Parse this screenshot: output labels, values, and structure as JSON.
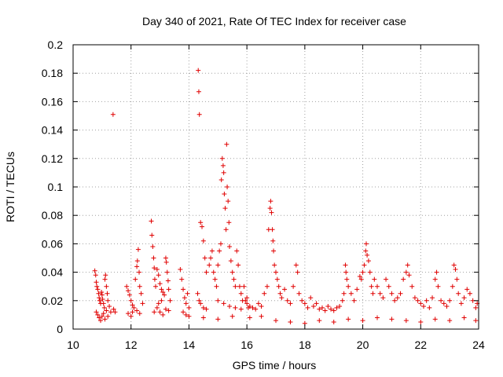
{
  "chart_data": {
    "type": "scatter",
    "title": "Day 340 of 2021, Rate Of TEC Index for receiver case",
    "xlabel": "GPS time / hours",
    "ylabel": "ROTI / TECUs",
    "xlim": [
      10,
      24
    ],
    "ylim": [
      0,
      0.2
    ],
    "xticks": [
      10,
      12,
      14,
      16,
      18,
      20,
      22,
      24
    ],
    "yticks": [
      0,
      0.02,
      0.04,
      0.06,
      0.08,
      0.1,
      0.12,
      0.14,
      0.16,
      0.18,
      0.2
    ],
    "xtick_labels": [
      "10",
      "12",
      "14",
      "16",
      "18",
      "20",
      "22",
      "24"
    ],
    "ytick_labels": [
      "0",
      "0.02",
      "0.04",
      "0.06",
      "0.08",
      "0.1",
      "0.12",
      "0.14",
      "0.16",
      "0.18",
      "0.2"
    ],
    "grid": true,
    "marker": "+",
    "marker_color": "#e00000",
    "series": [
      {
        "name": "ROTI",
        "color": "#e00000",
        "points": [
          [
            10.75,
            0.041
          ],
          [
            10.78,
            0.038
          ],
          [
            10.8,
            0.033
          ],
          [
            10.82,
            0.03
          ],
          [
            10.85,
            0.028
          ],
          [
            10.88,
            0.025
          ],
          [
            10.9,
            0.022
          ],
          [
            10.92,
            0.02
          ],
          [
            10.95,
            0.018
          ],
          [
            10.98,
            0.026
          ],
          [
            11.0,
            0.024
          ],
          [
            11.02,
            0.021
          ],
          [
            11.05,
            0.018
          ],
          [
            11.08,
            0.015
          ],
          [
            11.1,
            0.035
          ],
          [
            11.12,
            0.038
          ],
          [
            11.15,
            0.03
          ],
          [
            11.18,
            0.025
          ],
          [
            11.2,
            0.02
          ],
          [
            11.25,
            0.016
          ],
          [
            10.8,
            0.012
          ],
          [
            10.85,
            0.01
          ],
          [
            10.9,
            0.008
          ],
          [
            10.95,
            0.006
          ],
          [
            11.0,
            0.009
          ],
          [
            11.05,
            0.011
          ],
          [
            11.1,
            0.007
          ],
          [
            11.15,
            0.013
          ],
          [
            11.2,
            0.009
          ],
          [
            11.3,
            0.012
          ],
          [
            11.38,
            0.151
          ],
          [
            11.4,
            0.014
          ],
          [
            11.45,
            0.012
          ],
          [
            11.85,
            0.03
          ],
          [
            11.9,
            0.027
          ],
          [
            11.95,
            0.024
          ],
          [
            12.0,
            0.02
          ],
          [
            12.05,
            0.017
          ],
          [
            12.1,
            0.015
          ],
          [
            11.9,
            0.011
          ],
          [
            12.0,
            0.009
          ],
          [
            12.05,
            0.012
          ],
          [
            12.15,
            0.035
          ],
          [
            12.2,
            0.044
          ],
          [
            12.22,
            0.048
          ],
          [
            12.25,
            0.056
          ],
          [
            12.28,
            0.04
          ],
          [
            12.3,
            0.03
          ],
          [
            12.35,
            0.025
          ],
          [
            12.4,
            0.018
          ],
          [
            12.2,
            0.013
          ],
          [
            12.3,
            0.011
          ],
          [
            12.7,
            0.076
          ],
          [
            12.72,
            0.066
          ],
          [
            12.75,
            0.058
          ],
          [
            12.78,
            0.05
          ],
          [
            12.8,
            0.043
          ],
          [
            12.82,
            0.035
          ],
          [
            12.85,
            0.03
          ],
          [
            12.9,
            0.042
          ],
          [
            12.95,
            0.038
          ],
          [
            13.0,
            0.032
          ],
          [
            13.05,
            0.028
          ],
          [
            13.1,
            0.026
          ],
          [
            13.15,
            0.024
          ],
          [
            13.2,
            0.05
          ],
          [
            13.22,
            0.047
          ],
          [
            13.25,
            0.04
          ],
          [
            13.28,
            0.034
          ],
          [
            13.3,
            0.028
          ],
          [
            13.35,
            0.02
          ],
          [
            12.9,
            0.015
          ],
          [
            13.0,
            0.012
          ],
          [
            13.1,
            0.01
          ],
          [
            13.2,
            0.014
          ],
          [
            13.3,
            0.013
          ],
          [
            12.8,
            0.012
          ],
          [
            12.95,
            0.018
          ],
          [
            13.05,
            0.02
          ],
          [
            13.7,
            0.042
          ],
          [
            13.75,
            0.035
          ],
          [
            13.8,
            0.028
          ],
          [
            13.85,
            0.022
          ],
          [
            13.9,
            0.018
          ],
          [
            13.95,
            0.025
          ],
          [
            14.0,
            0.015
          ],
          [
            13.8,
            0.012
          ],
          [
            13.9,
            0.01
          ],
          [
            14.0,
            0.009
          ],
          [
            14.32,
            0.182
          ],
          [
            14.34,
            0.167
          ],
          [
            14.36,
            0.151
          ],
          [
            14.4,
            0.075
          ],
          [
            14.45,
            0.072
          ],
          [
            14.5,
            0.062
          ],
          [
            14.55,
            0.05
          ],
          [
            14.6,
            0.04
          ],
          [
            14.3,
            0.025
          ],
          [
            14.35,
            0.02
          ],
          [
            14.4,
            0.018
          ],
          [
            14.5,
            0.015
          ],
          [
            14.6,
            0.014
          ],
          [
            14.7,
            0.045
          ],
          [
            14.75,
            0.05
          ],
          [
            14.8,
            0.055
          ],
          [
            14.85,
            0.04
          ],
          [
            14.9,
            0.035
          ],
          [
            14.95,
            0.03
          ],
          [
            15.0,
            0.045
          ],
          [
            15.05,
            0.055
          ],
          [
            15.1,
            0.06
          ],
          [
            15.12,
            0.105
          ],
          [
            15.15,
            0.12
          ],
          [
            15.18,
            0.115
          ],
          [
            15.2,
            0.11
          ],
          [
            15.22,
            0.095
          ],
          [
            15.25,
            0.085
          ],
          [
            15.28,
            0.07
          ],
          [
            15.3,
            0.13
          ],
          [
            15.32,
            0.1
          ],
          [
            15.35,
            0.09
          ],
          [
            15.38,
            0.075
          ],
          [
            15.4,
            0.058
          ],
          [
            15.45,
            0.048
          ],
          [
            15.5,
            0.04
          ],
          [
            15.55,
            0.035
          ],
          [
            15.6,
            0.03
          ],
          [
            15.65,
            0.055
          ],
          [
            15.7,
            0.045
          ],
          [
            15.75,
            0.03
          ],
          [
            15.8,
            0.025
          ],
          [
            15.85,
            0.02
          ],
          [
            15.9,
            0.03
          ],
          [
            15.95,
            0.02
          ],
          [
            16.0,
            0.018
          ],
          [
            16.05,
            0.015
          ],
          [
            15.0,
            0.02
          ],
          [
            15.2,
            0.018
          ],
          [
            15.4,
            0.016
          ],
          [
            15.6,
            0.015
          ],
          [
            15.8,
            0.014
          ],
          [
            16.0,
            0.022
          ],
          [
            16.1,
            0.016
          ],
          [
            16.2,
            0.015
          ],
          [
            16.3,
            0.014
          ],
          [
            16.4,
            0.018
          ],
          [
            16.5,
            0.016
          ],
          [
            16.6,
            0.025
          ],
          [
            16.7,
            0.03
          ],
          [
            16.75,
            0.07
          ],
          [
            16.8,
            0.085
          ],
          [
            16.82,
            0.09
          ],
          [
            16.85,
            0.082
          ],
          [
            16.88,
            0.07
          ],
          [
            16.9,
            0.062
          ],
          [
            16.92,
            0.055
          ],
          [
            16.95,
            0.045
          ],
          [
            17.0,
            0.04
          ],
          [
            17.05,
            0.035
          ],
          [
            17.1,
            0.03
          ],
          [
            17.15,
            0.025
          ],
          [
            17.2,
            0.022
          ],
          [
            17.3,
            0.028
          ],
          [
            17.4,
            0.02
          ],
          [
            17.5,
            0.018
          ],
          [
            17.6,
            0.03
          ],
          [
            17.7,
            0.045
          ],
          [
            17.75,
            0.04
          ],
          [
            17.8,
            0.025
          ],
          [
            17.9,
            0.02
          ],
          [
            18.0,
            0.018
          ],
          [
            18.1,
            0.015
          ],
          [
            18.2,
            0.022
          ],
          [
            18.3,
            0.016
          ],
          [
            18.4,
            0.018
          ],
          [
            18.5,
            0.014
          ],
          [
            18.6,
            0.015
          ],
          [
            18.7,
            0.013
          ],
          [
            18.8,
            0.016
          ],
          [
            18.9,
            0.014
          ],
          [
            19.0,
            0.013
          ],
          [
            19.1,
            0.015
          ],
          [
            19.2,
            0.016
          ],
          [
            19.3,
            0.02
          ],
          [
            19.35,
            0.025
          ],
          [
            19.4,
            0.045
          ],
          [
            19.42,
            0.04
          ],
          [
            19.45,
            0.035
          ],
          [
            19.5,
            0.03
          ],
          [
            19.6,
            0.025
          ],
          [
            19.7,
            0.02
          ],
          [
            19.8,
            0.028
          ],
          [
            19.9,
            0.037
          ],
          [
            19.95,
            0.035
          ],
          [
            20.0,
            0.04
          ],
          [
            20.05,
            0.045
          ],
          [
            20.1,
            0.055
          ],
          [
            20.12,
            0.06
          ],
          [
            20.15,
            0.052
          ],
          [
            20.2,
            0.048
          ],
          [
            20.25,
            0.04
          ],
          [
            20.3,
            0.03
          ],
          [
            20.35,
            0.025
          ],
          [
            20.4,
            0.035
          ],
          [
            20.5,
            0.03
          ],
          [
            20.6,
            0.025
          ],
          [
            20.7,
            0.022
          ],
          [
            20.8,
            0.035
          ],
          [
            20.9,
            0.03
          ],
          [
            21.0,
            0.025
          ],
          [
            21.1,
            0.02
          ],
          [
            21.2,
            0.022
          ],
          [
            21.3,
            0.025
          ],
          [
            21.4,
            0.035
          ],
          [
            21.5,
            0.04
          ],
          [
            21.55,
            0.045
          ],
          [
            21.6,
            0.038
          ],
          [
            21.7,
            0.03
          ],
          [
            21.8,
            0.022
          ],
          [
            21.9,
            0.02
          ],
          [
            22.0,
            0.018
          ],
          [
            22.1,
            0.016
          ],
          [
            22.2,
            0.02
          ],
          [
            22.3,
            0.015
          ],
          [
            22.4,
            0.022
          ],
          [
            22.5,
            0.035
          ],
          [
            22.55,
            0.04
          ],
          [
            22.6,
            0.03
          ],
          [
            22.7,
            0.02
          ],
          [
            22.8,
            0.018
          ],
          [
            22.9,
            0.016
          ],
          [
            23.0,
            0.02
          ],
          [
            23.1,
            0.03
          ],
          [
            23.15,
            0.045
          ],
          [
            23.2,
            0.042
          ],
          [
            23.25,
            0.035
          ],
          [
            23.3,
            0.025
          ],
          [
            23.4,
            0.018
          ],
          [
            23.5,
            0.022
          ],
          [
            23.6,
            0.028
          ],
          [
            23.7,
            0.025
          ],
          [
            23.8,
            0.02
          ],
          [
            23.9,
            0.015
          ],
          [
            23.95,
            0.018
          ],
          [
            16.1,
            0.008
          ],
          [
            16.5,
            0.009
          ],
          [
            17.0,
            0.006
          ],
          [
            17.5,
            0.005
          ],
          [
            18.0,
            0.004
          ],
          [
            18.5,
            0.006
          ],
          [
            19.0,
            0.005
          ],
          [
            19.5,
            0.007
          ],
          [
            20.0,
            0.006
          ],
          [
            20.5,
            0.008
          ],
          [
            21.0,
            0.007
          ],
          [
            21.5,
            0.006
          ],
          [
            22.0,
            0.005
          ],
          [
            22.5,
            0.007
          ],
          [
            23.0,
            0.006
          ],
          [
            23.5,
            0.008
          ],
          [
            23.9,
            0.006
          ],
          [
            14.5,
            0.008
          ],
          [
            15.0,
            0.007
          ],
          [
            15.5,
            0.009
          ]
        ]
      }
    ]
  }
}
